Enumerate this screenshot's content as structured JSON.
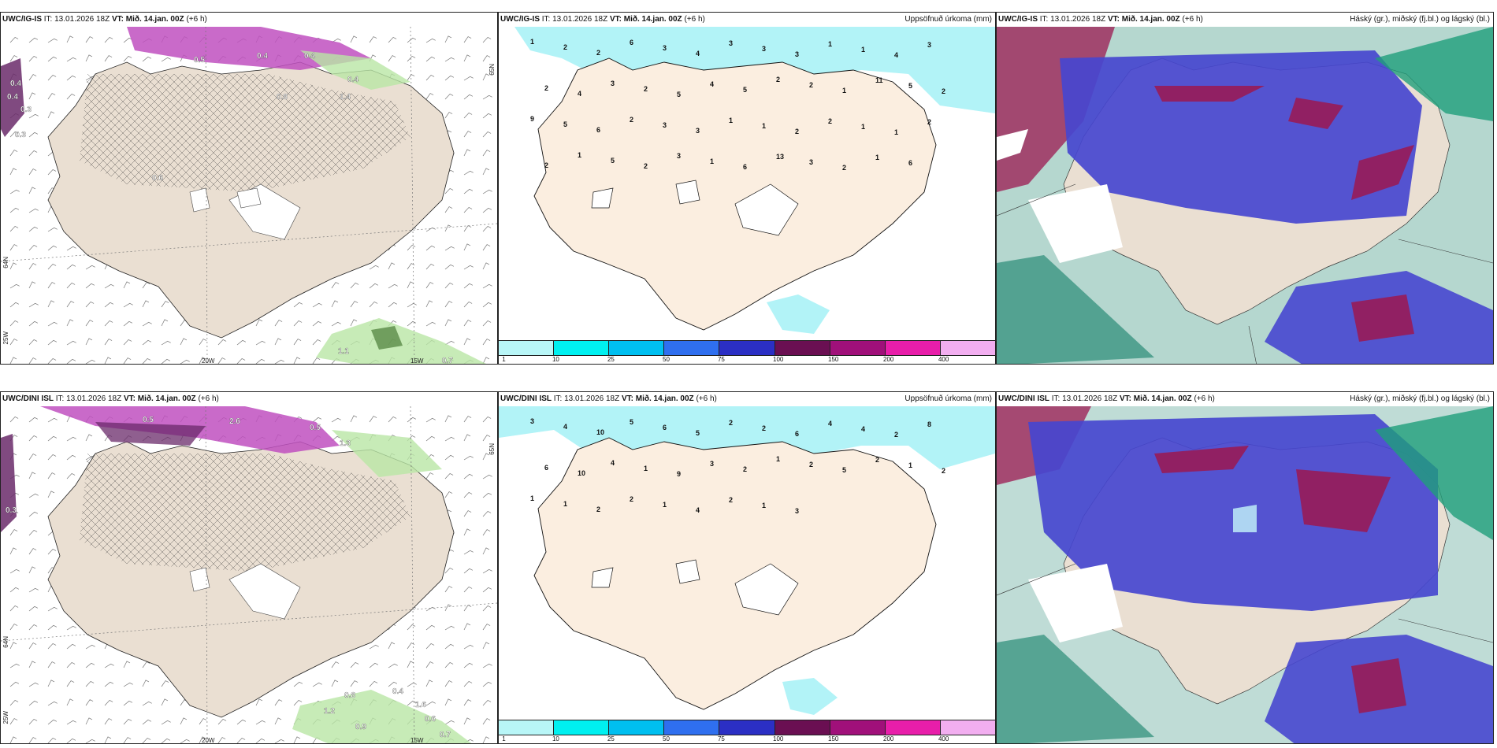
{
  "rows": [
    {
      "model": "UWC/IG-IS",
      "it_label": "IT:",
      "it_value": "13.01.2026 18Z",
      "vt_label": "VT:",
      "vt_value": "Mið. 14.jan. 00Z",
      "lead": "(+6 h)",
      "left_axis": {
        "lat_top": "65N",
        "lat_mid": "64N",
        "lon_left": "25W",
        "lon_mid": "20W",
        "lon_right": "15W"
      },
      "precip_labels": [
        "1",
        "2",
        "2",
        "6",
        "3",
        "4",
        "3",
        "3",
        "3",
        "1",
        "1",
        "4",
        "3",
        "2",
        "4",
        "3",
        "2",
        "5",
        "4",
        "5",
        "2",
        "2",
        "1",
        "11",
        "5",
        "2",
        "9",
        "5",
        "6",
        "2",
        "3",
        "3",
        "1",
        "1",
        "2",
        "2",
        "1",
        "1",
        "2",
        "2",
        "1",
        "5",
        "2",
        "3",
        "1",
        "6",
        "13",
        "3",
        "2",
        "1",
        "6"
      ],
      "wind_labels": [
        "0.4",
        "0.4",
        "0.3",
        "0.4",
        "0.5",
        "0.4",
        "0.4",
        "0.3",
        "1.1",
        "0.7",
        "0.8",
        "1.4",
        "0.6"
      ]
    },
    {
      "model": "UWC/DINI ISL",
      "it_label": "IT:",
      "it_value": "13.01.2026 18Z",
      "vt_label": "VT:",
      "vt_value": "Mið. 14.jan. 00Z",
      "lead": "(+6 h)",
      "left_axis": {
        "lat_top": "65N",
        "lat_mid": "64N",
        "lon_left": "25W",
        "lon_mid": "20W",
        "lon_right": "15W"
      },
      "precip_labels": [
        "3",
        "4",
        "10",
        "5",
        "6",
        "5",
        "2",
        "2",
        "6",
        "4",
        "4",
        "2",
        "8",
        "6",
        "10",
        "4",
        "1",
        "9",
        "3",
        "2",
        "1",
        "2",
        "5",
        "2",
        "1",
        "2",
        "1",
        "1",
        "2",
        "2",
        "1",
        "4",
        "2",
        "1",
        "3"
      ],
      "wind_labels": [
        "0.3",
        "2.6",
        "0.5",
        "1.2",
        "0.9",
        "1.6",
        "0.6",
        "0.7",
        "0.5",
        "0.4",
        "1.3",
        "0.8"
      ]
    }
  ],
  "precip_title": "Uppsöfnuð úrkoma (mm)",
  "cloud_title": "Háský (gr.), miðský (fj.bl.) og lágský (bl.)",
  "legend": {
    "ticks": [
      "1",
      "10",
      "25",
      "50",
      "75",
      "100",
      "150",
      "200",
      "400"
    ],
    "colors": [
      "#b8f6f7",
      "#00f0f0",
      "#00bff0",
      "#2f6fef",
      "#2b2fc4",
      "#6a0f52",
      "#a0107a",
      "#e81eaa",
      "#f2aef0"
    ]
  },
  "colors": {
    "land": "#fbeee0",
    "land_wind": "#eadfd2",
    "sea_ice": "#b2f3f7",
    "cloud_high": "#4747cf",
    "cloud_mid": "#9c1850",
    "cloud_low": "#2a8c76"
  }
}
